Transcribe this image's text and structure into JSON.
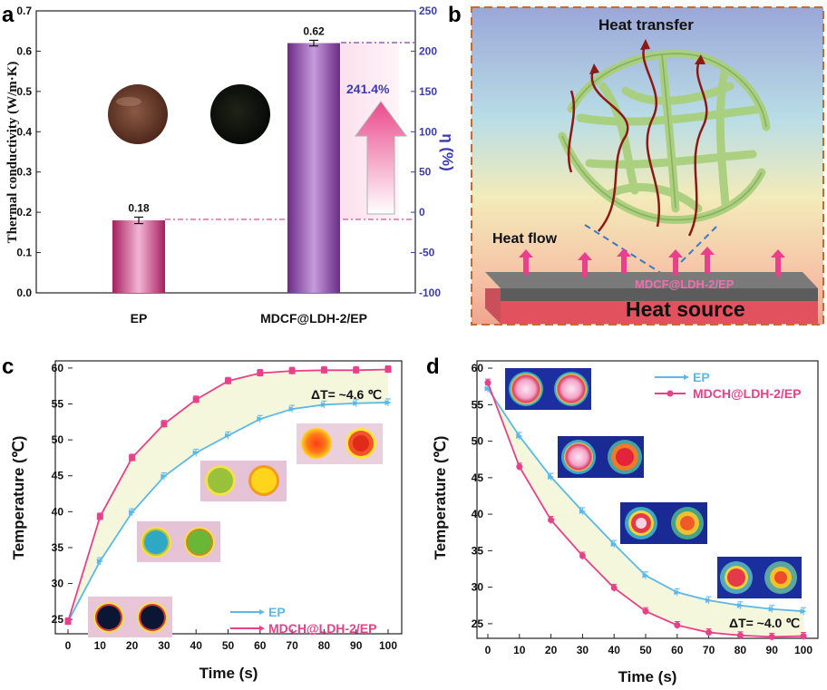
{
  "panels": {
    "a": "a",
    "b": "b",
    "c": "c",
    "d": "d"
  },
  "schematic": {
    "heat_transfer": "Heat transfer",
    "heat_flow": "Heat flow",
    "heat_source": "Heat source",
    "sample_label": "MDCF@LDH-2/EP"
  },
  "colors": {
    "ep": "#5bb8e8",
    "mdch": "#e8408a",
    "bar_ep": "#c0387a",
    "bar_mdcf": "#8a3fa0",
    "right_axis": "#3b3bb0",
    "band": "#f4f7dc"
  },
  "chart_data": [
    {
      "type": "bar",
      "panel": "a",
      "categories": [
        "EP",
        "MDCF@LDH-2/EP"
      ],
      "values": [
        0.18,
        0.62
      ],
      "error": [
        0.008,
        0.007
      ],
      "value_labels": [
        "0.18",
        "0.62"
      ],
      "ylabel": "Thermal conductivity (W/m·K)",
      "ylim": [
        0,
        0.7
      ],
      "yticks": [
        "0.0",
        "0.1",
        "0.2",
        "0.3",
        "0.4",
        "0.5",
        "0.6",
        "0.7"
      ],
      "ylabel_right": "η (%)",
      "ylim_right": [
        -100,
        250
      ],
      "yticks_right": [
        "-100",
        "-50",
        "0",
        "50",
        "100",
        "150",
        "200",
        "250"
      ],
      "enhancement_label": "241.4%",
      "enhancement": 241.4
    },
    {
      "type": "line",
      "panel": "c",
      "x": [
        0,
        10,
        20,
        30,
        40,
        50,
        60,
        70,
        80,
        90,
        100
      ],
      "series": [
        {
          "name": "EP",
          "values": [
            24.7,
            33.1,
            39.9,
            44.9,
            48.2,
            50.6,
            52.9,
            54.3,
            54.9,
            55.1,
            55.2
          ]
        },
        {
          "name": "MDCH@LDH-2/EP",
          "values": [
            24.7,
            39.3,
            47.5,
            52.2,
            55.6,
            58.2,
            59.3,
            59.6,
            59.7,
            59.7,
            59.8
          ]
        }
      ],
      "xlabel": "Time (s)",
      "ylabel": "Temperature (℃)",
      "xlim": [
        0,
        100
      ],
      "ylim": [
        23,
        61
      ],
      "xticks": [
        "0",
        "10",
        "20",
        "30",
        "40",
        "50",
        "60",
        "70",
        "80",
        "90",
        "100"
      ],
      "yticks": [
        "25",
        "30",
        "35",
        "40",
        "45",
        "50",
        "55",
        "60"
      ],
      "annotation": "ΔT= ~4.6 ℃",
      "legend": "bottom-right"
    },
    {
      "type": "line",
      "panel": "d",
      "x": [
        0,
        10,
        20,
        30,
        40,
        50,
        60,
        70,
        80,
        90,
        100
      ],
      "series": [
        {
          "name": "EP",
          "values": [
            57.2,
            50.7,
            45.1,
            40.4,
            35.9,
            31.6,
            29.3,
            28.2,
            27.5,
            27.0,
            26.7
          ]
        },
        {
          "name": "MDCH@LDH-2/EP",
          "values": [
            58.0,
            46.5,
            39.2,
            34.3,
            29.9,
            26.7,
            24.8,
            23.8,
            23.4,
            23.2,
            23.3
          ]
        }
      ],
      "xlabel": "Time (s)",
      "ylabel": "Temperature (℃)",
      "xlim": [
        0,
        100
      ],
      "ylim": [
        23,
        61
      ],
      "xticks": [
        "0",
        "10",
        "20",
        "30",
        "40",
        "50",
        "60",
        "70",
        "80",
        "90",
        "100"
      ],
      "yticks": [
        "25",
        "30",
        "35",
        "40",
        "45",
        "50",
        "55",
        "60"
      ],
      "annotation": "ΔT= ~4.0 ℃",
      "legend": "top-right"
    }
  ]
}
